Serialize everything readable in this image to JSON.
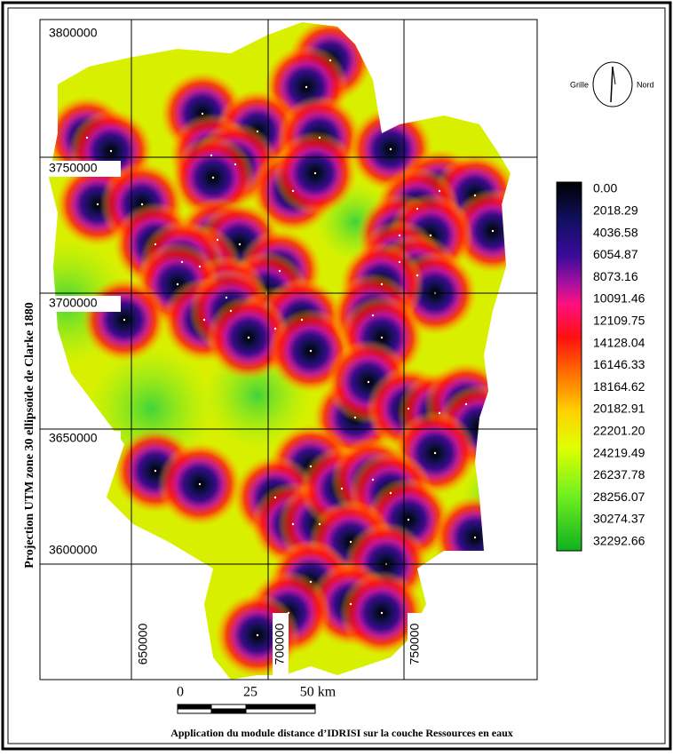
{
  "map": {
    "axis_title": "Projection UTM zone 30 ellipsoïde de Clarke 1880",
    "grid_labels": {
      "northing": [
        "3800000",
        "3750000",
        "3700000",
        "3650000",
        "3600000"
      ],
      "easting": [
        "650000",
        "700000",
        "750000"
      ]
    },
    "compass": {
      "left": "Grille",
      "right": "Nord"
    },
    "legend": {
      "labels": [
        "0.00",
        "2018.29",
        "4036.58",
        "6054.87",
        "8073.16",
        "10091.46",
        "12109.75",
        "14128.04",
        "16146.33",
        "18164.62",
        "20182.91",
        "22201.20",
        "24219.49",
        "26237.78",
        "28256.07",
        "30274.37",
        "32292.66"
      ]
    },
    "scale_bar": {
      "labels": [
        "0",
        "25",
        "50 km"
      ]
    },
    "caption": "Application du module distance d’IDRISI sur la couche Ressources en eaux"
  }
}
